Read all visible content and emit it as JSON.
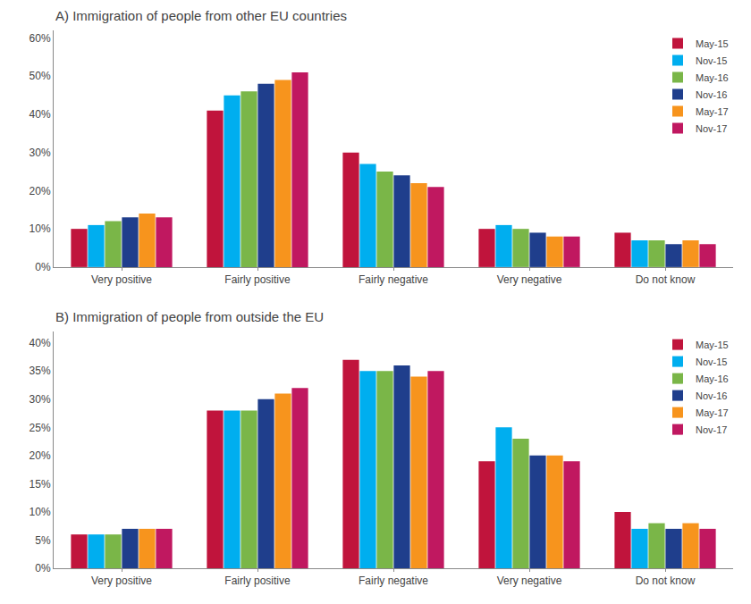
{
  "chart_data": [
    {
      "type": "bar",
      "title": "A) Immigration of people from other EU countries",
      "categories": [
        "Very positive",
        "Fairly positive",
        "Fairly negative",
        "Very negative",
        "Do not know"
      ],
      "series": [
        {
          "name": "May-15",
          "color": "#C0143C",
          "values": [
            10,
            41,
            30,
            10,
            9
          ]
        },
        {
          "name": "Nov-15",
          "color": "#00AEEF",
          "values": [
            11,
            45,
            27,
            11,
            7
          ]
        },
        {
          "name": "May-16",
          "color": "#7AB648",
          "values": [
            12,
            46,
            25,
            10,
            7
          ]
        },
        {
          "name": "Nov-16",
          "color": "#1F3E8C",
          "values": [
            13,
            48,
            24,
            9,
            6
          ]
        },
        {
          "name": "May-17",
          "color": "#F7941D",
          "values": [
            14,
            49,
            22,
            8,
            7
          ]
        },
        {
          "name": "Nov-17",
          "color": "#C01860",
          "values": [
            13,
            51,
            21,
            8,
            6
          ]
        }
      ],
      "ylim": [
        0,
        62
      ],
      "yticks": [
        {
          "value": 0,
          "label": "0%"
        },
        {
          "value": 10,
          "label": "10%"
        },
        {
          "value": 20,
          "label": "20%"
        },
        {
          "value": 30,
          "label": "30%"
        },
        {
          "value": 40,
          "label": "40%"
        },
        {
          "value": 50,
          "label": "50%"
        },
        {
          "value": 60,
          "label": "60%"
        }
      ],
      "grid": false,
      "legend": "upper right"
    },
    {
      "type": "bar",
      "title": "B) Immigration of people from outside the EU",
      "categories": [
        "Very positive",
        "Fairly positive",
        "Fairly negative",
        "Very negative",
        "Do not know"
      ],
      "series": [
        {
          "name": "May-15",
          "color": "#C0143C",
          "values": [
            6,
            28,
            37,
            19,
            10
          ]
        },
        {
          "name": "Nov-15",
          "color": "#00AEEF",
          "values": [
            6,
            28,
            35,
            25,
            7
          ]
        },
        {
          "name": "May-16",
          "color": "#7AB648",
          "values": [
            6,
            28,
            35,
            23,
            8
          ]
        },
        {
          "name": "Nov-16",
          "color": "#1F3E8C",
          "values": [
            7,
            30,
            36,
            20,
            7
          ]
        },
        {
          "name": "May-17",
          "color": "#F7941D",
          "values": [
            7,
            31,
            34,
            20,
            8
          ]
        },
        {
          "name": "Nov-17",
          "color": "#C01860",
          "values": [
            7,
            32,
            35,
            19,
            7
          ]
        }
      ],
      "ylim": [
        0,
        42
      ],
      "yticks": [
        {
          "value": 0,
          "label": "0%"
        },
        {
          "value": 5,
          "label": "5%"
        },
        {
          "value": 10,
          "label": "10%"
        },
        {
          "value": 15,
          "label": "15%"
        },
        {
          "value": 20,
          "label": "20%"
        },
        {
          "value": 25,
          "label": "25%"
        },
        {
          "value": 30,
          "label": "30%"
        },
        {
          "value": 35,
          "label": "35%"
        },
        {
          "value": 40,
          "label": "40%"
        }
      ],
      "grid": false,
      "legend": "upper right"
    }
  ]
}
